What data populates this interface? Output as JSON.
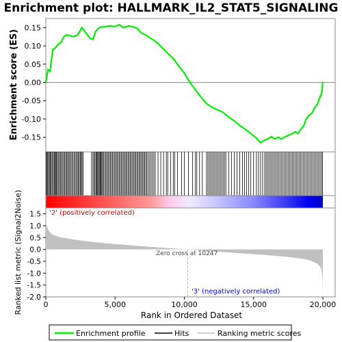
{
  "chart_data": {
    "type": "line",
    "title": "Enrichment plot: HALLMARK_IL2_STAT5_SIGNALING",
    "xlabel": "Rank in Ordered Dataset",
    "ylabel_top": "Enrichment score (ES)",
    "ylabel_bottom": "Ranked list metric (Signal2Noise)",
    "xlim": [
      0,
      20000
    ],
    "x_ticks": [
      0,
      5000,
      10000,
      15000,
      20000
    ],
    "x_tick_labels": [
      "0",
      "5,000",
      "10,000",
      "15,000",
      "20,000"
    ],
    "es_ylim": [
      -0.19,
      0.175
    ],
    "es_ticks": [
      -0.15,
      -0.1,
      -0.05,
      0.0,
      0.05,
      0.1,
      0.15
    ],
    "es_tick_labels": [
      "-0.15",
      "-0.10",
      "-0.05",
      "0.00",
      "0.05",
      "0.10",
      "0.15"
    ],
    "metric_ylim": [
      -2.0,
      1.75
    ],
    "metric_ticks": [
      -2.0,
      -1.5,
      -1.0,
      -0.5,
      0.0,
      0.5,
      1.0,
      1.5
    ],
    "metric_tick_labels": [
      "-2.0",
      "-1.5",
      "-1.0",
      "-0.5",
      "0.0",
      "0.5",
      "1.0",
      "1.5"
    ],
    "annotations": {
      "positive": "'2' (positively correlated)",
      "negative": "'3' (negatively correlated)",
      "zero_cross": "Zero cross at 10247",
      "zero_cross_rank": 10247
    },
    "enrichment_profile": {
      "x": [
        0,
        150,
        300,
        500,
        700,
        900,
        1100,
        1300,
        1500,
        1700,
        2000,
        2300,
        2600,
        2800,
        3000,
        3200,
        3400,
        3600,
        3800,
        4000,
        4300,
        4600,
        5000,
        5300,
        5600,
        6000,
        6300,
        6600,
        6900,
        7200,
        7600,
        8000,
        8400,
        8800,
        9200,
        9600,
        10000,
        10400,
        10800,
        11200,
        11600,
        12000,
        12400,
        12800,
        13200,
        13600,
        14000,
        14400,
        14800,
        15200,
        15500,
        15700,
        16000,
        16300,
        16500,
        16800,
        17000,
        17300,
        17500,
        17800,
        18000,
        18200,
        18400,
        18600,
        18800,
        19000,
        19200,
        19400,
        19600,
        19750,
        19850,
        19900,
        19950,
        19980,
        20000
      ],
      "y": [
        0.0,
        0.035,
        0.03,
        0.09,
        0.095,
        0.105,
        0.11,
        0.125,
        0.13,
        0.128,
        0.125,
        0.13,
        0.15,
        0.14,
        0.13,
        0.12,
        0.118,
        0.14,
        0.148,
        0.152,
        0.152,
        0.155,
        0.153,
        0.158,
        0.15,
        0.155,
        0.152,
        0.148,
        0.135,
        0.13,
        0.12,
        0.11,
        0.095,
        0.08,
        0.065,
        0.045,
        0.025,
        0.0,
        -0.02,
        -0.04,
        -0.058,
        -0.068,
        -0.075,
        -0.082,
        -0.095,
        -0.105,
        -0.118,
        -0.128,
        -0.14,
        -0.152,
        -0.165,
        -0.16,
        -0.155,
        -0.148,
        -0.155,
        -0.15,
        -0.155,
        -0.148,
        -0.145,
        -0.14,
        -0.135,
        -0.14,
        -0.128,
        -0.12,
        -0.1,
        -0.09,
        -0.085,
        -0.07,
        -0.06,
        -0.045,
        -0.035,
        -0.03,
        -0.02,
        0.0,
        0.0
      ]
    },
    "hit_ranks": [
      20,
      60,
      120,
      200,
      250,
      330,
      380,
      450,
      520,
      600,
      650,
      700,
      760,
      830,
      900,
      980,
      1050,
      1120,
      1200,
      1280,
      1350,
      1430,
      1500,
      1570,
      1650,
      1720,
      1800,
      1880,
      1960,
      2040,
      2120,
      2200,
      2280,
      2350,
      2420,
      2500,
      2560,
      2620,
      2700,
      3300,
      3400,
      3480,
      3550,
      3620,
      3680,
      3740,
      3800,
      3860,
      3920,
      3980,
      4040,
      4100,
      4180,
      4260,
      4340,
      4420,
      4500,
      4580,
      4660,
      4740,
      4820,
      4900,
      4980,
      5060,
      5140,
      5220,
      5300,
      5380,
      5460,
      5540,
      5620,
      5700,
      5780,
      5860,
      5940,
      6020,
      6100,
      6180,
      6260,
      6340,
      6420,
      6500,
      6580,
      6660,
      6740,
      6820,
      6900,
      6980,
      7060,
      7140,
      7220,
      7300,
      7400,
      7500,
      7600,
      7700,
      7800,
      7900,
      8100,
      8300,
      8500,
      8700,
      8800,
      9000,
      9200,
      9300,
      9500,
      9800,
      10000,
      10300,
      10600,
      10800,
      10900,
      11100,
      11300,
      11600,
      11700,
      11800,
      11900,
      12000,
      12100,
      12200,
      12300,
      12400,
      12500,
      12600,
      12700,
      12800,
      12900,
      13000,
      13200,
      13400,
      13600,
      13800,
      14000,
      14200,
      14350,
      14500,
      14650,
      14800,
      15000,
      15200,
      15350,
      15500,
      15650,
      15800,
      15900,
      16000,
      16100,
      16200,
      16300,
      16400,
      16500,
      16600,
      16700,
      16800,
      16900,
      17000,
      17100,
      17200,
      17300,
      17400,
      17500,
      17600,
      17700,
      17800,
      17900,
      18000,
      18100,
      18200,
      18300,
      18400,
      18500,
      18600,
      18700,
      18800,
      18900,
      19000,
      19100,
      19200,
      19300,
      19400,
      19500,
      19600,
      19700,
      19800,
      19900,
      19980
    ],
    "metric": {
      "x": [
        0,
        20,
        60,
        150,
        300,
        500,
        1000,
        2000,
        3000,
        4000,
        5000,
        6000,
        7000,
        8000,
        9000,
        10000,
        10247,
        11000,
        12000,
        13000,
        14000,
        15000,
        16000,
        17000,
        18000,
        18500,
        19000,
        19300,
        19600,
        19800,
        19900,
        19950,
        19980,
        20000
      ],
      "y": [
        1.6,
        1.2,
        1.0,
        0.85,
        0.72,
        0.62,
        0.52,
        0.42,
        0.34,
        0.28,
        0.23,
        0.18,
        0.13,
        0.09,
        0.05,
        0.01,
        0.0,
        -0.04,
        -0.08,
        -0.12,
        -0.16,
        -0.2,
        -0.24,
        -0.29,
        -0.35,
        -0.39,
        -0.45,
        -0.52,
        -0.6,
        -0.72,
        -0.85,
        -1.05,
        -1.4,
        -1.95
      ]
    },
    "legend": [
      "Enrichment profile",
      "Hits",
      "Ranking metric scores"
    ],
    "colors": {
      "profile": "#00ee00",
      "hits": "#000000",
      "metric_fill": "#c0c0c0",
      "zero_line": "#808080",
      "positive": "#ff0000",
      "negative": "#0000ff",
      "frame": "#888888",
      "neg_label": "#0000dd",
      "pos_label": "#cc0000"
    }
  }
}
